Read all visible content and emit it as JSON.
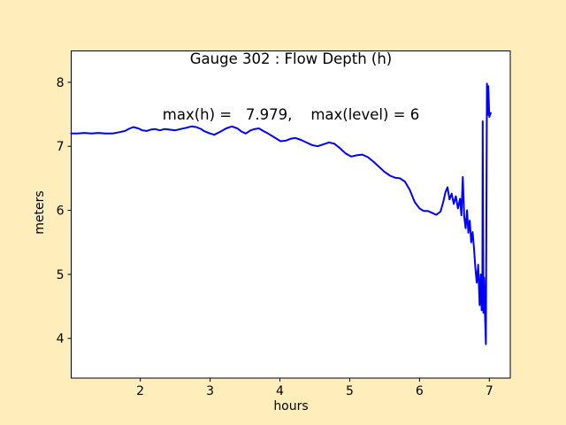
{
  "figure": {
    "bg_color": "#ffeebb",
    "plot_bg_color": "#ffffff",
    "spine_color": "#000000",
    "title_line1": "Gauge 302 : Flow Depth (h)",
    "title_line2": "max(h) =   7.979,    max(level) = 6",
    "xlabel": "hours",
    "ylabel": "meters"
  },
  "chart_data": {
    "type": "line",
    "title": "Gauge 302 : Flow Depth (h)",
    "subtitle": "max(h) =   7.979,    max(level) = 6",
    "xlabel": "hours",
    "ylabel": "meters",
    "xticks": [
      2,
      3,
      4,
      5,
      6,
      7
    ],
    "yticks": [
      4,
      5,
      6,
      7,
      8
    ],
    "xlim": [
      1.01,
      7.3
    ],
    "ylim": [
      3.38,
      8.49
    ],
    "grid": false,
    "legend": null,
    "line_color": "#0000ff",
    "max_h": 7.979,
    "max_level": 6,
    "series": [
      {
        "name": "h (flow depth)",
        "x": [
          1.01,
          1.1,
          1.2,
          1.3,
          1.4,
          1.5,
          1.6,
          1.7,
          1.78,
          1.85,
          1.9,
          1.97,
          2.03,
          2.09,
          2.15,
          2.21,
          2.28,
          2.35,
          2.42,
          2.5,
          2.58,
          2.66,
          2.73,
          2.8,
          2.87,
          2.91,
          3.0,
          3.06,
          3.15,
          3.23,
          3.31,
          3.39,
          3.45,
          3.51,
          3.58,
          3.64,
          3.7,
          3.76,
          3.83,
          3.92,
          4.01,
          4.09,
          4.16,
          4.22,
          4.3,
          4.38,
          4.46,
          4.54,
          4.62,
          4.7,
          4.78,
          4.86,
          4.94,
          5.02,
          5.1,
          5.18,
          5.26,
          5.34,
          5.42,
          5.5,
          5.58,
          5.65,
          5.72,
          5.79,
          5.86,
          5.93,
          6.0,
          6.06,
          6.12,
          6.18,
          6.24,
          6.3,
          6.34,
          6.37,
          6.4,
          6.43,
          6.46,
          6.49,
          6.52,
          6.55,
          6.58,
          6.6,
          6.62,
          6.64,
          6.66,
          6.68,
          6.7,
          6.72,
          6.74,
          6.76,
          6.78,
          6.8,
          6.82,
          6.84,
          6.86,
          6.875,
          6.89,
          6.9,
          6.905,
          6.915,
          6.925,
          6.935,
          6.95,
          6.965,
          6.975,
          6.985,
          7.0,
          7.02
        ],
        "y": [
          7.2,
          7.2,
          7.21,
          7.2,
          7.21,
          7.2,
          7.2,
          7.22,
          7.24,
          7.28,
          7.3,
          7.28,
          7.25,
          7.24,
          7.26,
          7.27,
          7.25,
          7.27,
          7.26,
          7.25,
          7.27,
          7.29,
          7.31,
          7.3,
          7.27,
          7.24,
          7.2,
          7.18,
          7.23,
          7.28,
          7.31,
          7.28,
          7.23,
          7.2,
          7.25,
          7.27,
          7.28,
          7.24,
          7.2,
          7.14,
          7.08,
          7.09,
          7.12,
          7.13,
          7.1,
          7.06,
          7.02,
          7.0,
          7.03,
          7.06,
          7.04,
          6.97,
          6.89,
          6.84,
          6.86,
          6.87,
          6.83,
          6.76,
          6.68,
          6.6,
          6.54,
          6.51,
          6.5,
          6.45,
          6.32,
          6.13,
          6.03,
          5.99,
          5.99,
          5.96,
          5.93,
          5.98,
          6.13,
          6.28,
          6.36,
          6.17,
          6.26,
          6.1,
          6.22,
          6.03,
          6.18,
          5.92,
          6.52,
          5.9,
          5.72,
          6.0,
          5.65,
          5.84,
          5.5,
          5.66,
          5.4,
          5.1,
          4.87,
          5.15,
          4.52,
          5.0,
          4.44,
          4.6,
          7.39,
          4.4,
          4.95,
          4.45,
          3.91,
          7.98,
          7.49,
          7.94,
          7.46,
          7.52
        ]
      }
    ]
  }
}
